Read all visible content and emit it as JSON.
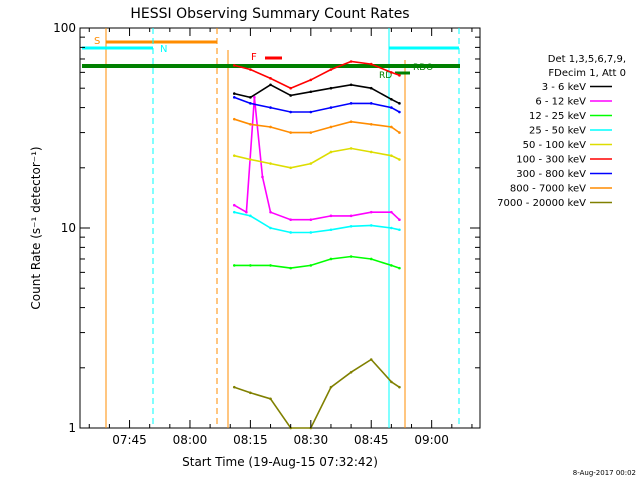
{
  "chart_data": {
    "type": "line",
    "title": "HESSI Observing Summary Count Rates",
    "xlabel": "Start Time (19-Aug-15 07:32:42)",
    "ylabel": "Count Rate (s⁻¹ detector⁻¹)",
    "y_scale": "log",
    "ylim": [
      1,
      100
    ],
    "xlim": [
      "07:32:42",
      "09:12:00"
    ],
    "x_ticks": [
      "07:45",
      "08:00",
      "08:15",
      "08:30",
      "08:45",
      "09:00"
    ],
    "y_ticks": [
      "1",
      "10",
      "100"
    ],
    "footer_date": "8-Aug-2017 00:02",
    "legend": {
      "header": [
        "Det 1,3,5,6,7,9,",
        "FDecim 1, Att 0"
      ],
      "position": "right"
    },
    "series": [
      {
        "name": "3 - 6 keV",
        "color": "#000000",
        "x": [
          "08:11",
          "08:15",
          "08:20",
          "08:25",
          "08:30",
          "08:35",
          "08:40",
          "08:45",
          "08:50",
          "08:52"
        ],
        "values": [
          47,
          45,
          52,
          46,
          48,
          50,
          52,
          50,
          44,
          42
        ]
      },
      {
        "name": "6 - 12 keV",
        "color": "#ff00ff",
        "x": [
          "08:11",
          "08:14",
          "08:16",
          "08:18",
          "08:20",
          "08:25",
          "08:30",
          "08:35",
          "08:40",
          "08:45",
          "08:50",
          "08:52"
        ],
        "values": [
          13,
          12,
          45,
          18,
          12,
          11,
          11,
          11.5,
          11.5,
          12,
          12,
          11
        ]
      },
      {
        "name": "12 - 25 keV",
        "color": "#00ff00",
        "x": [
          "08:11",
          "08:15",
          "08:20",
          "08:25",
          "08:30",
          "08:35",
          "08:40",
          "08:45",
          "08:50",
          "08:52"
        ],
        "values": [
          6.5,
          6.5,
          6.5,
          6.3,
          6.5,
          7.0,
          7.2,
          7.0,
          6.5,
          6.3
        ]
      },
      {
        "name": "25 - 50 keV",
        "color": "#00ffff",
        "x": [
          "08:11",
          "08:15",
          "08:20",
          "08:25",
          "08:30",
          "08:35",
          "08:40",
          "08:45",
          "08:50",
          "08:52"
        ],
        "values": [
          12,
          11.5,
          10,
          9.5,
          9.5,
          9.8,
          10.2,
          10.3,
          10,
          9.8
        ]
      },
      {
        "name": "50 - 100 keV",
        "color": "#dddd00",
        "x": [
          "08:11",
          "08:15",
          "08:20",
          "08:25",
          "08:30",
          "08:35",
          "08:40",
          "08:45",
          "08:50",
          "08:52"
        ],
        "values": [
          23,
          22,
          21,
          20,
          21,
          24,
          25,
          24,
          23,
          22
        ]
      },
      {
        "name": "100 - 300 keV",
        "color": "#ff0000",
        "x": [
          "08:11",
          "08:15",
          "08:20",
          "08:25",
          "08:30",
          "08:35",
          "08:40",
          "08:45",
          "08:50",
          "08:52"
        ],
        "values": [
          65,
          62,
          56,
          50,
          55,
          62,
          68,
          66,
          60,
          58
        ]
      },
      {
        "name": "300 - 800 keV",
        "color": "#0000ff",
        "x": [
          "08:11",
          "08:15",
          "08:20",
          "08:25",
          "08:30",
          "08:35",
          "08:40",
          "08:45",
          "08:50",
          "08:52"
        ],
        "values": [
          45,
          42,
          40,
          38,
          38,
          40,
          42,
          42,
          40,
          38
        ]
      },
      {
        "name": "800 - 7000 keV",
        "color": "#ff8c00",
        "x": [
          "08:11",
          "08:15",
          "08:20",
          "08:25",
          "08:30",
          "08:35",
          "08:40",
          "08:45",
          "08:50",
          "08:52"
        ],
        "values": [
          35,
          33,
          32,
          30,
          30,
          32,
          34,
          33,
          32,
          30
        ]
      },
      {
        "name": "7000 - 20000 keV",
        "color": "#808000",
        "x": [
          "08:11",
          "08:15",
          "08:20",
          "08:25",
          "08:30",
          "08:35",
          "08:40",
          "08:45",
          "08:50",
          "08:52"
        ],
        "values": [
          1.6,
          1.5,
          1.4,
          1.0,
          1.0,
          1.6,
          1.9,
          2.2,
          1.7,
          1.6
        ]
      }
    ],
    "flags": [
      {
        "label": "S",
        "color": "#ff8c00"
      },
      {
        "label": "N",
        "color": "#00ffff"
      },
      {
        "label": "F",
        "color": "#ff0000"
      },
      {
        "label": "RD",
        "color": "#008000"
      },
      {
        "label": "RDO",
        "color": "#008000"
      }
    ]
  }
}
